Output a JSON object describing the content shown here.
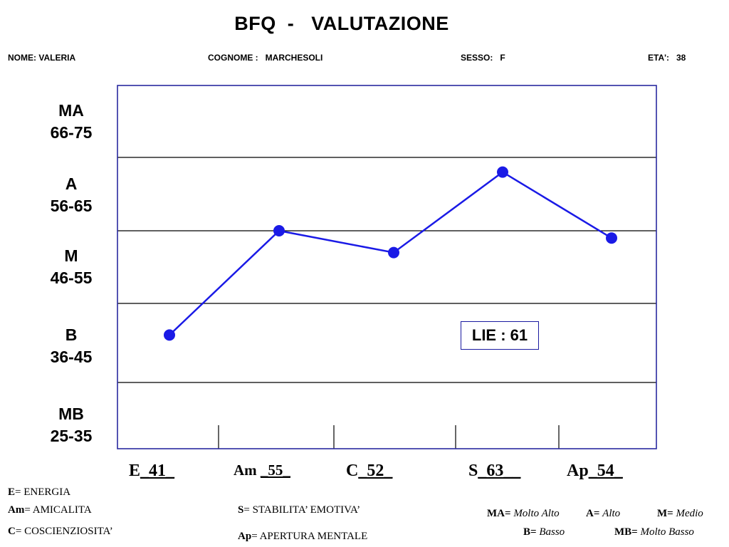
{
  "header": {
    "title": "BFQ  -   VALUTAZIONE",
    "name": "NOME: VALERIA",
    "surname": "COGNOME :   MARCHESOLI",
    "sex": "SESSO:   F",
    "age": "ETA':   38"
  },
  "bands": [
    {
      "code": "MA",
      "range": "66-75"
    },
    {
      "code": "A",
      "range": "56-65"
    },
    {
      "code": "M",
      "range": "46-55"
    },
    {
      "code": "B",
      "range": "36-45"
    },
    {
      "code": "MB",
      "range": "25-35"
    }
  ],
  "categories": [
    {
      "label": "E",
      "score": "_41_"
    },
    {
      "label": "Am ",
      "score": "_55_"
    },
    {
      "label": "C",
      "score": "_52_"
    },
    {
      "label": "S",
      "score": "_63__"
    },
    {
      "label": "Ap",
      "score": "_54_"
    }
  ],
  "lie": "LIE : 61",
  "legend": {
    "left": [
      {
        "abbr": "E",
        "text": "ENERGIA"
      },
      {
        "abbr": "Am",
        "text": "AMICALITA"
      },
      {
        "abbr": "C",
        "text": "COSCIENZIOSITA’"
      }
    ],
    "middle": [
      {
        "abbr": "S",
        "text": "STABILITA’ EMOTIVA’"
      },
      {
        "abbr": "Ap",
        "text": "APERTURA MENTALE"
      }
    ],
    "levels": [
      {
        "abbr": "MA",
        "text": "Molto Alto"
      },
      {
        "abbr": "A",
        "text": "Alto"
      },
      {
        "abbr": "M",
        "text": "Medio"
      },
      {
        "abbr": "B",
        "text": "Basso"
      },
      {
        "abbr": "MB",
        "text": "Molto Basso"
      }
    ],
    "eq": "="
  },
  "colors": {
    "line": "#1a1ae6",
    "frame": "#2a2aa0",
    "grid": "#000000"
  },
  "chart_data": {
    "type": "line",
    "title": "BFQ  -   VALUTAZIONE",
    "categories": [
      "E",
      "Am",
      "C",
      "S",
      "Ap"
    ],
    "values": [
      41,
      55,
      52,
      63,
      54
    ],
    "ylim": [
      25,
      75
    ],
    "y_bands": [
      {
        "label": "MB",
        "range": [
          25,
          35
        ]
      },
      {
        "label": "B",
        "range": [
          36,
          45
        ]
      },
      {
        "label": "M",
        "range": [
          46,
          55
        ]
      },
      {
        "label": "A",
        "range": [
          56,
          65
        ]
      },
      {
        "label": "MA",
        "range": [
          66,
          75
        ]
      }
    ],
    "annotations": [
      "LIE : 61"
    ],
    "grid": true
  }
}
